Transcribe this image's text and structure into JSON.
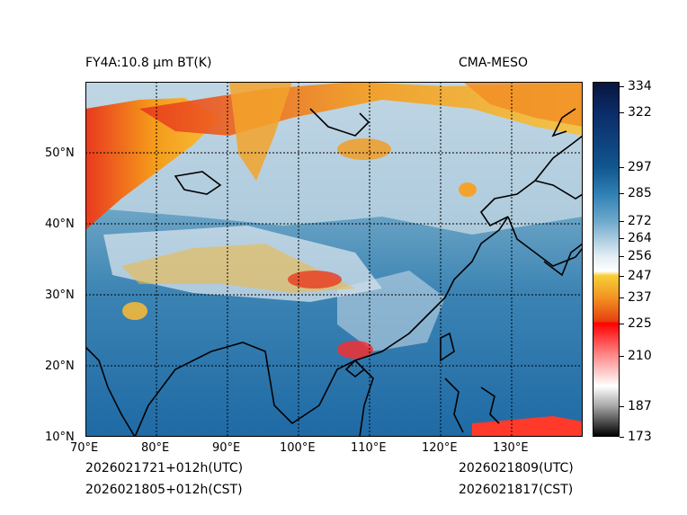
{
  "header": {
    "left_title": "FY4A:10.8 µm BT(K)",
    "right_title": "CMA-MESO"
  },
  "map": {
    "lat_ticks": [
      "50°N",
      "40°N",
      "30°N",
      "20°N",
      "10°N"
    ],
    "lon_ticks": [
      "70°E",
      "80°E",
      "90°E",
      "100°E",
      "110°E",
      "120°E",
      "130°E"
    ]
  },
  "colorbar": {
    "labels": [
      "334",
      "322",
      "297",
      "285",
      "272",
      "264",
      "256",
      "247",
      "237",
      "225",
      "210",
      "187",
      "173"
    ],
    "min": 173,
    "max": 336
  },
  "footer": {
    "left_line1": "2026021721+012h(UTC)",
    "left_line2": "2026021805+012h(CST)",
    "right_line1": "2026021809(UTC)",
    "right_line2": "2026021817(CST)"
  }
}
